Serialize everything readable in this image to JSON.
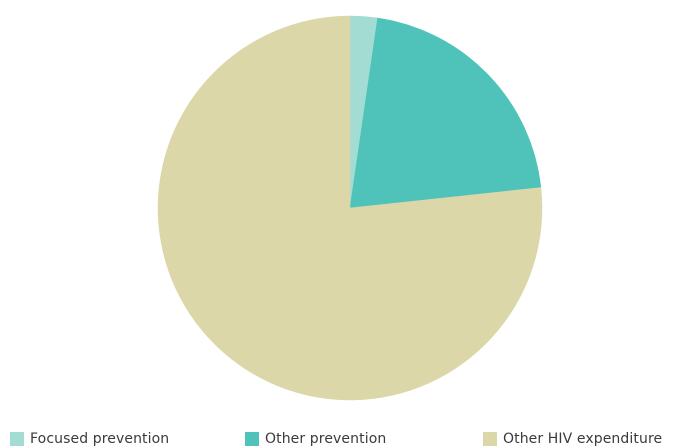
{
  "chart_data": {
    "type": "pie",
    "title": "",
    "start_angle_deg": 0,
    "direction": "clockwise",
    "legend_position": "bottom",
    "slices": [
      {
        "label": "Focused prevention",
        "value": 2.3,
        "color": "#a3dcd3"
      },
      {
        "label": "Other prevention",
        "value": 21.0,
        "color": "#4fc3b9"
      },
      {
        "label": "Other HIV expenditure",
        "value": 76.7,
        "color": "#dcd7a8"
      }
    ]
  }
}
